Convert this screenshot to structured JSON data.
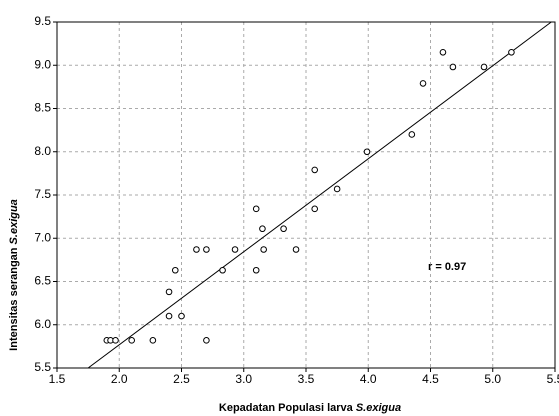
{
  "chart_data": {
    "type": "scatter",
    "xlabel": "Kepadatan Populasi larva",
    "xlabel_species": "S.exigua",
    "ylabel": "Intensitas serangan",
    "ylabel_species": "S.exigua",
    "annotation": "r = 0.97",
    "x": [
      1.9,
      1.93,
      1.97,
      2.1,
      2.27,
      2.4,
      2.4,
      2.45,
      2.5,
      2.62,
      2.7,
      2.7,
      2.83,
      2.93,
      3.1,
      3.1,
      3.15,
      3.16,
      3.32,
      3.42,
      3.57,
      3.57,
      3.75,
      3.99,
      4.35,
      4.44,
      4.6,
      4.68,
      4.93,
      5.15
    ],
    "values": [
      5.82,
      5.82,
      5.82,
      5.82,
      5.82,
      6.1,
      6.38,
      6.63,
      6.1,
      6.87,
      6.87,
      5.82,
      6.63,
      6.87,
      7.34,
      6.63,
      7.11,
      6.87,
      7.11,
      6.87,
      7.34,
      7.79,
      7.57,
      8.0,
      8.2,
      8.79,
      9.15,
      8.98,
      8.98,
      9.15
    ],
    "color": "#000000",
    "trend_line": {
      "x": [
        1.75,
        5.47
      ],
      "y": [
        5.5,
        9.5
      ]
    },
    "xlim": [
      1.5,
      5.5
    ],
    "ylim": [
      5.5,
      9.5
    ],
    "xticks": [
      {
        "value": 1.5,
        "label": "1.5"
      },
      {
        "value": 2,
        "label": "2.0"
      },
      {
        "value": 2.5,
        "label": "2.5"
      },
      {
        "value": 3,
        "label": "3.0"
      },
      {
        "value": 3.5,
        "label": "3.5"
      },
      {
        "value": 4,
        "label": "4.0"
      },
      {
        "value": 4.5,
        "label": "4.5"
      },
      {
        "value": 5,
        "label": "5.0"
      },
      {
        "value": 5.5,
        "label": "5.5"
      }
    ],
    "yticks": [
      {
        "value": 5.5,
        "label": "5.5"
      },
      {
        "value": 6,
        "label": "6.0"
      },
      {
        "value": 6.5,
        "label": "6.5"
      },
      {
        "value": 7,
        "label": "7.0"
      },
      {
        "value": 7.5,
        "label": "7.5"
      },
      {
        "value": 8,
        "label": "8.0"
      },
      {
        "value": 8.5,
        "label": "8.5"
      },
      {
        "value": 9,
        "label": "9.0"
      },
      {
        "value": 9.5,
        "label": "9.5"
      }
    ],
    "grid": true
  }
}
